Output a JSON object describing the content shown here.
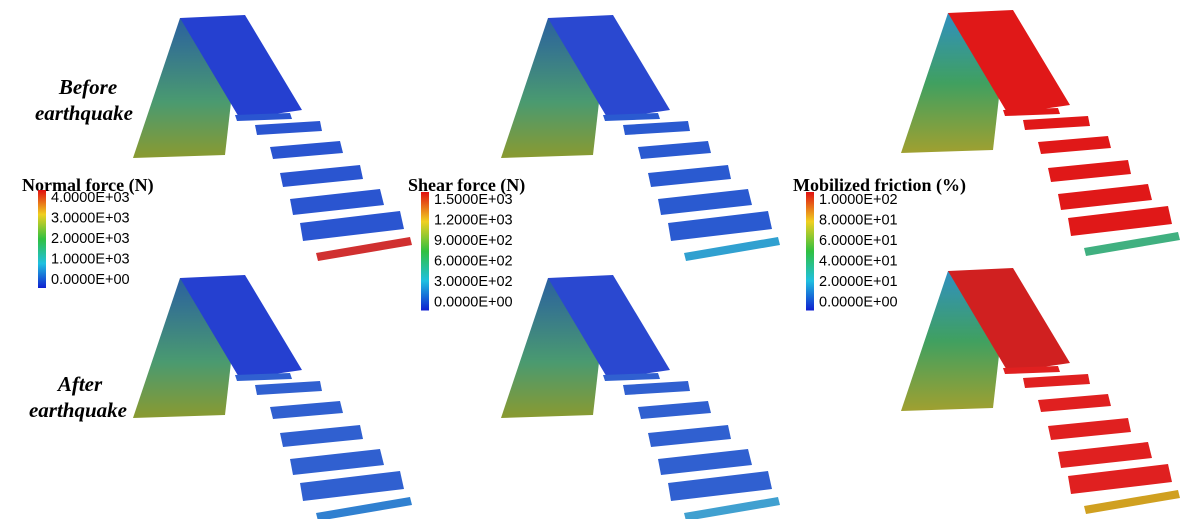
{
  "row_labels": [
    [
      "Before",
      "earthquake"
    ],
    [
      "After",
      "earthquake"
    ]
  ],
  "legends": [
    {
      "title": "Normal force (N)",
      "labels": [
        "4.0000E+03",
        "3.0000E+03",
        "2.0000E+03",
        "1.0000E+03",
        "0.0000E+00"
      ]
    },
    {
      "title": "Shear force (N)",
      "labels": [
        "1.5000E+03",
        "1.2000E+03",
        "9.0000E+02",
        "6.0000E+02",
        "3.0000E+02",
        "0.0000E+00"
      ]
    },
    {
      "title": "Mobilized friction (%)",
      "labels": [
        "1.0000E+02",
        "8.0000E+01",
        "6.0000E+01",
        "4.0000E+01",
        "2.0000E+01",
        "0.0000E+00"
      ]
    }
  ]
}
